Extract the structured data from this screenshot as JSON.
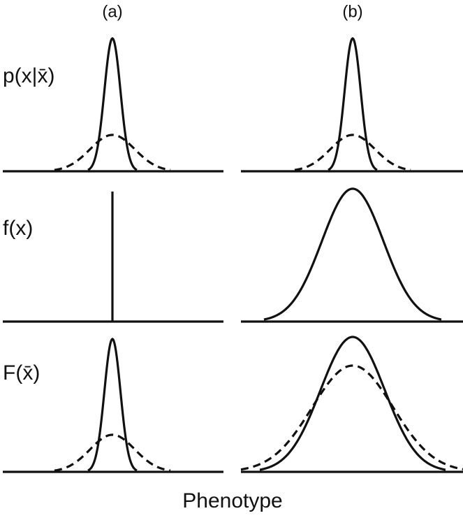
{
  "column_labels": [
    "(a)",
    "(b)"
  ],
  "row_labels": [
    "p(x|x̄)",
    "f(x)",
    "F(x̄)"
  ],
  "x_axis_label": "Phenotype"
}
